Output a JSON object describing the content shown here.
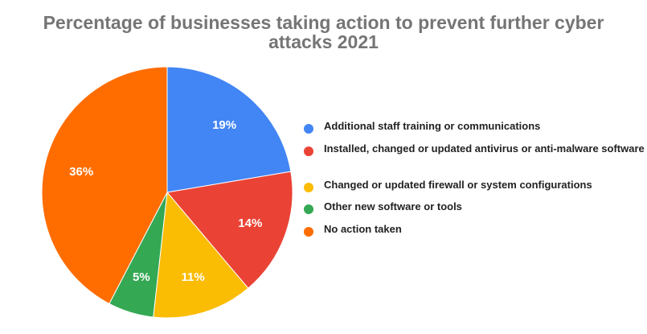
{
  "chart_data": {
    "type": "pie",
    "title_lines": [
      "Percentage of businesses taking action to prevent further cyber",
      "attacks 2021"
    ],
    "slices": [
      {
        "label": "Additional staff training or communications",
        "value": 19,
        "display": "19%",
        "color": "#4285f4"
      },
      {
        "label": "Installed, changed or updated antivirus or anti-malware software",
        "value": 14,
        "display": "14%",
        "color": "#ea4335"
      },
      {
        "label": "Changed or updated firewall or system configurations",
        "value": 11,
        "display": "11%",
        "color": "#fbbc04"
      },
      {
        "label": "Other new software or tools",
        "value": 5,
        "display": "5%",
        "color": "#34a853"
      },
      {
        "label": "No action taken",
        "value": 36,
        "display": "36%",
        "color": "#ff6d01"
      }
    ],
    "legend_position": "right",
    "start_angle": "12 o'clock",
    "direction": "clockwise"
  }
}
